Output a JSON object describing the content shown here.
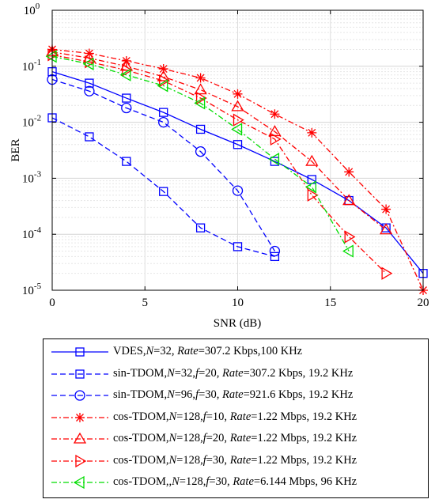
{
  "chart_data": {
    "type": "line",
    "xlabel": "SNR (dB)",
    "ylabel": "BER",
    "xlim": [
      0,
      20
    ],
    "ylim": [
      1e-05,
      1
    ],
    "yscale": "log",
    "grid": true,
    "legend_position": "below",
    "x_ticks": [
      "0",
      "5",
      "10",
      "15",
      "20"
    ],
    "y_ticks": [
      {
        "base": "10",
        "exp": "-5"
      },
      {
        "base": "10",
        "exp": "-4"
      },
      {
        "base": "10",
        "exp": "-3"
      },
      {
        "base": "10",
        "exp": "-2"
      },
      {
        "base": "10",
        "exp": "-1"
      },
      {
        "base": "10",
        "exp": "0"
      }
    ],
    "series": [
      {
        "legend_parts": [
          [
            "",
            "VDES,"
          ],
          [
            "i",
            "N"
          ],
          [
            "",
            "=32, "
          ],
          [
            "i",
            "Rate"
          ],
          [
            "",
            "=307.2 Kbps,100 KHz"
          ]
        ],
        "color": "#0000ff",
        "dash": "solid",
        "marker": "square",
        "x": [
          0,
          2,
          4,
          6,
          8,
          10,
          12,
          14,
          16,
          18,
          20
        ],
        "y": [
          0.08,
          0.05,
          0.027,
          0.015,
          0.0075,
          0.004,
          0.002,
          0.00095,
          0.0004,
          0.00013,
          2e-05
        ]
      },
      {
        "legend_parts": [
          [
            "",
            "sin-TDOM,"
          ],
          [
            "i",
            "N"
          ],
          [
            "",
            "=32,"
          ],
          [
            "i",
            "f"
          ],
          [
            "",
            "=20, "
          ],
          [
            "i",
            "Rate"
          ],
          [
            "",
            "=307.2 Kbps, 19.2 KHz"
          ]
        ],
        "color": "#0000ff",
        "dash": "dashed",
        "marker": "square",
        "x": [
          0,
          2,
          4,
          6,
          8,
          10,
          12
        ],
        "y": [
          0.012,
          0.0055,
          0.002,
          0.00058,
          0.00013,
          6e-05,
          4e-05
        ]
      },
      {
        "legend_parts": [
          [
            "",
            "sin-TDOM,"
          ],
          [
            "i",
            "N"
          ],
          [
            "",
            "=96,"
          ],
          [
            "i",
            "f"
          ],
          [
            "",
            "=30, "
          ],
          [
            "i",
            "Rate"
          ],
          [
            "",
            "=921.6 Kbps, 19.2 KHz"
          ]
        ],
        "color": "#0000ff",
        "dash": "dashed",
        "marker": "circle",
        "x": [
          0,
          2,
          4,
          6,
          8,
          10,
          12
        ],
        "y": [
          0.058,
          0.036,
          0.018,
          0.01,
          0.003,
          0.0006,
          5e-05
        ]
      },
      {
        "legend_parts": [
          [
            "",
            "cos-TDOM,"
          ],
          [
            "i",
            "N"
          ],
          [
            "",
            "=128,"
          ],
          [
            "i",
            "f"
          ],
          [
            "",
            "=10, "
          ],
          [
            "i",
            "Rate"
          ],
          [
            "",
            "=1.22 Mbps, 19.2 KHz"
          ]
        ],
        "color": "#ff0000",
        "dash": "dashdot",
        "marker": "asterisk",
        "x": [
          0,
          2,
          4,
          6,
          8,
          10,
          12,
          14,
          16,
          18,
          20
        ],
        "y": [
          0.2,
          0.17,
          0.125,
          0.09,
          0.062,
          0.032,
          0.014,
          0.0065,
          0.0013,
          0.00028,
          1e-05
        ]
      },
      {
        "legend_parts": [
          [
            "",
            "cos-TDOM,"
          ],
          [
            "i",
            "N"
          ],
          [
            "",
            "=128,"
          ],
          [
            "i",
            "f"
          ],
          [
            "",
            "=20, "
          ],
          [
            "i",
            "Rate"
          ],
          [
            "",
            "=1.22 Mbps, 19.2 KHz"
          ]
        ],
        "color": "#ff0000",
        "dash": "dashdot",
        "marker": "triangle-up",
        "x": [
          0,
          2,
          4,
          6,
          8,
          10,
          12,
          14,
          16,
          18
        ],
        "y": [
          0.18,
          0.14,
          0.1,
          0.065,
          0.038,
          0.019,
          0.0068,
          0.002,
          0.0004,
          0.00012
        ]
      },
      {
        "legend_parts": [
          [
            "",
            "cos-TDOM,"
          ],
          [
            "i",
            "N"
          ],
          [
            "",
            "=128,"
          ],
          [
            "i",
            "f"
          ],
          [
            "",
            "=30, "
          ],
          [
            "i",
            "Rate"
          ],
          [
            "",
            "=1.22 Mbps, 19.2 KHz"
          ]
        ],
        "color": "#ff0000",
        "dash": "dashdot",
        "marker": "triangle-right",
        "x": [
          0,
          2,
          4,
          6,
          8,
          10,
          12,
          14,
          16,
          18
        ],
        "y": [
          0.16,
          0.12,
          0.085,
          0.055,
          0.027,
          0.011,
          0.005,
          0.0005,
          9e-05,
          2e-05
        ]
      },
      {
        "legend_parts": [
          [
            "",
            "cos-TDOM,,"
          ],
          [
            "i",
            "N"
          ],
          [
            "",
            "=128,"
          ],
          [
            "i",
            "f"
          ],
          [
            "",
            "=30, "
          ],
          [
            "i",
            "Rate"
          ],
          [
            "",
            "=6.144 Mbps, 96 KHz"
          ]
        ],
        "color": "#00dd00",
        "dash": "dashdot",
        "marker": "triangle-left",
        "x": [
          0,
          2,
          4,
          6,
          8,
          10,
          12,
          14,
          16
        ],
        "y": [
          0.15,
          0.11,
          0.07,
          0.045,
          0.022,
          0.0075,
          0.0022,
          0.0007,
          5e-05
        ]
      }
    ]
  }
}
